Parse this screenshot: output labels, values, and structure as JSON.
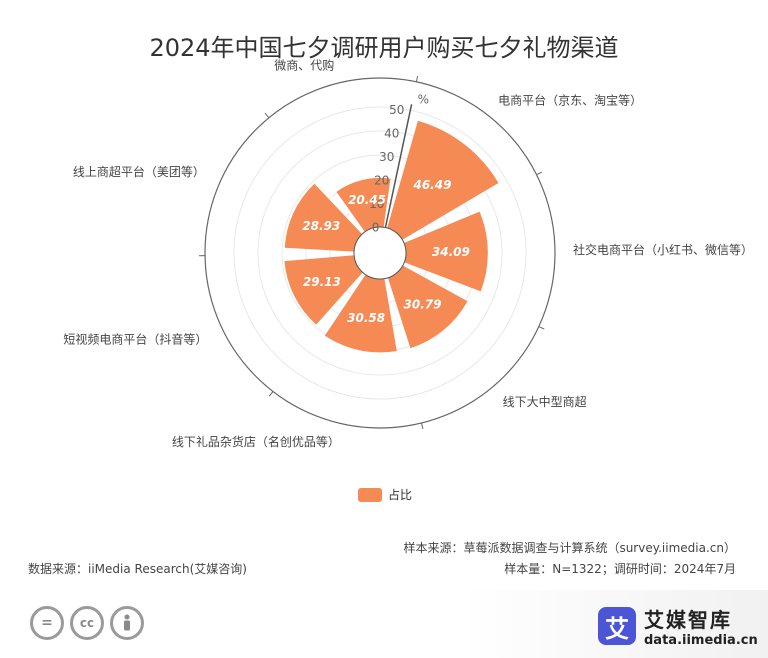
{
  "chart_data": {
    "type": "polar-bar",
    "title": "2024年中国七夕调研用户购买七夕礼物渠道",
    "unit": "%",
    "radial_ticks": [
      "0",
      "10",
      "20",
      "30",
      "40",
      "50"
    ],
    "rmax": 50,
    "categories": [
      "电商平台（京东、淘宝等）",
      "社交电商平台（小红书、微信等）",
      "线下大中型商超",
      "线下礼品杂货店（名创优品等）",
      "短视频电商平台（抖音等）",
      "线上商超平台（美团等）",
      "微商、代购"
    ],
    "series": [
      {
        "name": "占比",
        "values": [
          46.49,
          34.09,
          30.79,
          30.58,
          29.13,
          28.93,
          20.45
        ]
      }
    ],
    "colors": {
      "bar": "#f68a54",
      "axis": "#555555",
      "grid": "#e8e8e8"
    },
    "legend_position": "bottom-center"
  },
  "footer": {
    "source_sample": "样本来源：草莓派数据调查与计算系统（survey.iimedia.cn）",
    "data_source": "数据来源：iiMedia Research(艾媒咨询)",
    "sample_size": "样本量：N=1322；调研时间：2024年7月"
  },
  "branding": {
    "logo_char": "艾",
    "name": "艾媒智库",
    "url": "data.iimedia.cn",
    "cc_icons": [
      "=",
      "cc",
      "person"
    ]
  }
}
